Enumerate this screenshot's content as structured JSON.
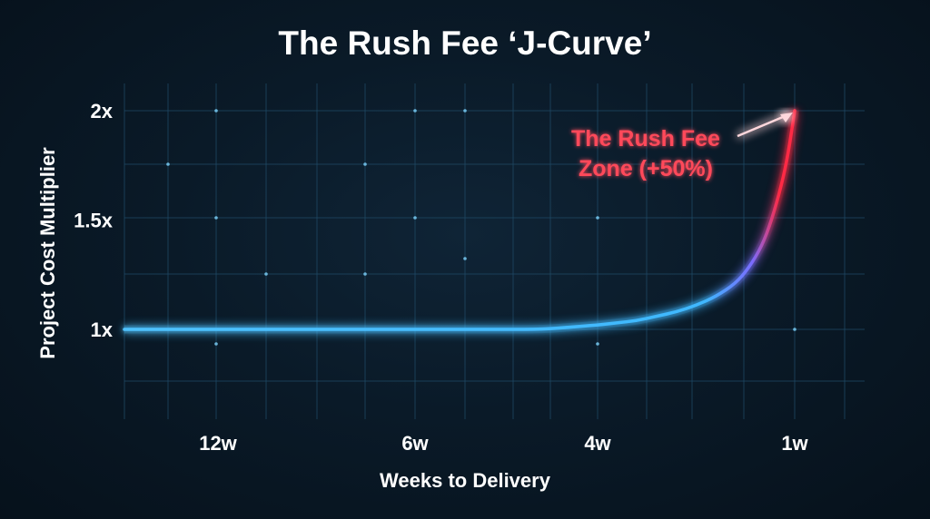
{
  "chart_data": {
    "type": "line",
    "title": "The Rush Fee ‘J-Curve’",
    "xlabel": "Weeks to Delivery",
    "ylabel": "Project Cost Multiplier",
    "x_ticks": [
      "12w",
      "6w",
      "4w",
      "1w"
    ],
    "y_ticks": [
      {
        "value": 1,
        "label": "1x"
      },
      {
        "value": 1.5,
        "label": "1.5x"
      },
      {
        "value": 2,
        "label": "2x"
      }
    ],
    "ylim": [
      0.6,
      2.2
    ],
    "grid": true,
    "legend": "none",
    "series": [
      {
        "x": [
          12.5,
          11.5,
          10.5,
          9.5,
          8.5,
          7.5,
          6.5,
          6,
          5.5,
          5,
          4.6,
          4.3,
          4,
          3.7,
          3.4,
          3.1,
          2.8,
          2.5,
          2.2,
          1.9,
          1.7,
          1.5,
          1.35,
          1.2,
          1.1,
          1
        ],
        "y": [
          1.0,
          1.0,
          1.0,
          1.0,
          1.0,
          1.0,
          1.0,
          1.0,
          1.0,
          1.0,
          1.0,
          1.01,
          1.02,
          1.03,
          1.04,
          1.06,
          1.08,
          1.11,
          1.15,
          1.21,
          1.28,
          1.38,
          1.5,
          1.66,
          1.8,
          2.0
        ]
      }
    ],
    "annotations": [
      {
        "lines": [
          "The Rush Fee",
          "Zone (+50%)"
        ],
        "x": 1,
        "y": 2.0
      }
    ],
    "colors": {
      "line_start": "#4fc3ff",
      "line_end": "#ff2a44",
      "axis": "#7fd6ff",
      "grid": "#1f4a66",
      "annotation": "#ff4a5a"
    }
  }
}
